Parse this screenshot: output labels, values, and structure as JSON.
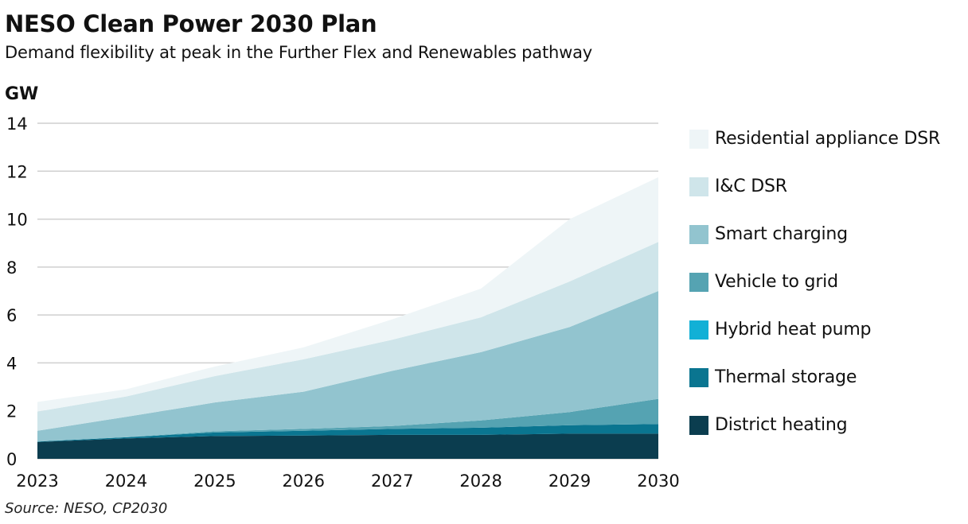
{
  "header": {
    "title": "NESO Clean Power 2030 Plan",
    "subtitle": "Demand flexibility at peak in the Further Flex and Renewables pathway"
  },
  "footer": {
    "source": "Source: NESO, CP2030"
  },
  "chart_data": {
    "type": "area",
    "stacked": true,
    "ylabel": "GW",
    "xlabel": "",
    "x": [
      "2023",
      "2024",
      "2025",
      "2026",
      "2027",
      "2028",
      "2029",
      "2030"
    ],
    "ylim": [
      0,
      14
    ],
    "yticks": [
      0,
      2,
      4,
      6,
      8,
      10,
      12,
      14
    ],
    "grid": true,
    "legend_position": "right",
    "series": [
      {
        "name": "District heating",
        "color": "#0b3d4f",
        "values": [
          0.7,
          0.85,
          0.95,
          0.97,
          1.0,
          1.0,
          1.05,
          1.05
        ]
      },
      {
        "name": "Thermal storage",
        "color": "#0a7590",
        "values": [
          0.02,
          0.05,
          0.15,
          0.2,
          0.25,
          0.3,
          0.35,
          0.4
        ]
      },
      {
        "name": "Hybrid heat pump",
        "color": "#12b0d6",
        "values": [
          0.0,
          0.0,
          0.0,
          0.0,
          0.0,
          0.0,
          0.0,
          0.0
        ]
      },
      {
        "name": "Vehicle to grid",
        "color": "#55a3b2",
        "values": [
          0.0,
          0.0,
          0.05,
          0.08,
          0.12,
          0.3,
          0.55,
          1.05
        ]
      },
      {
        "name": "Smart charging",
        "color": "#92c4cf",
        "values": [
          0.45,
          0.85,
          1.2,
          1.55,
          2.3,
          2.85,
          3.55,
          4.5
        ]
      },
      {
        "name": "I&C DSR",
        "color": "#cfe5ea",
        "values": [
          0.8,
          0.85,
          1.1,
          1.35,
          1.3,
          1.45,
          1.9,
          2.05
        ]
      },
      {
        "name": "Residential appliance DSR",
        "color": "#eef5f7",
        "values": [
          0.4,
          0.3,
          0.4,
          0.5,
          0.85,
          1.2,
          2.6,
          2.7
        ]
      }
    ]
  }
}
